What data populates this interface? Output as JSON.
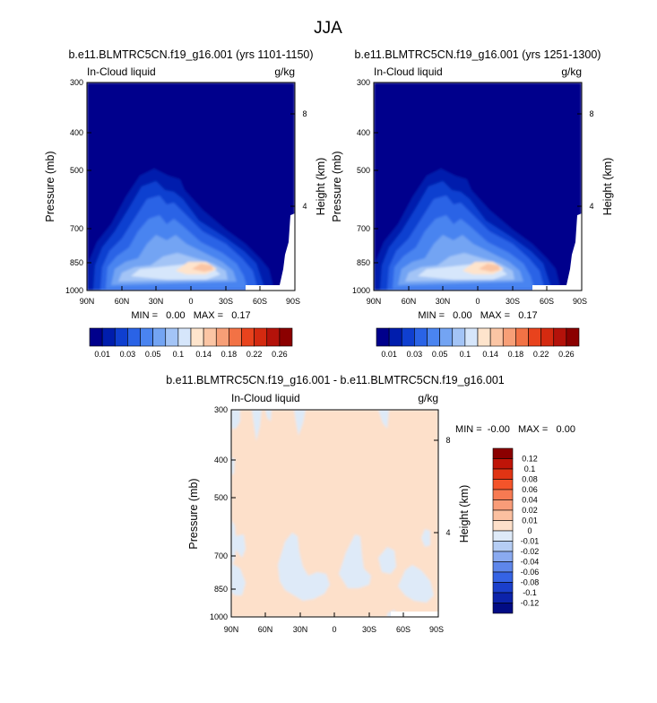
{
  "figure": {
    "title": "JJA"
  },
  "chart_data": [
    {
      "type": "heatmap",
      "title": "b.e11.BLMTRC5CN.f19_g16.001 (yrs 1101-1150)",
      "left_string": "In-Cloud liquid",
      "right_string": "g/kg",
      "xlabel": "",
      "ylabel": "Pressure (mb)",
      "ylabel_right": "Height (km)",
      "x_ticks": [
        "90N",
        "60N",
        "30N",
        "0",
        "30S",
        "60S",
        "90S"
      ],
      "y_ticks": [
        "300",
        "400",
        "500",
        "700",
        "850",
        "1000"
      ],
      "y_right_ticks": [
        "8",
        "4"
      ],
      "stats": "MIN =   0.00   MAX =   0.17",
      "min": 0.0,
      "max": 0.17,
      "levels_visible": [
        "0.01",
        "0.03",
        "0.05",
        "0.1",
        "0.14",
        "0.18",
        "0.22",
        "0.26"
      ],
      "colors": [
        "#00008c",
        "#001dad",
        "#0f3fd0",
        "#2a63e6",
        "#4a84f0",
        "#73a4f3",
        "#a3c4f6",
        "#d6e6fb",
        "#fee4cc",
        "#fbc5a4",
        "#f79f77",
        "#f27245",
        "#e8431d",
        "#d42a10",
        "#b4120a",
        "#8b0000"
      ],
      "colorbar_orientation": "horizontal",
      "colorbar_placement": "below"
    },
    {
      "type": "heatmap",
      "title": "b.e11.BLMTRC5CN.f19_g16.001 (yrs 1251-1300)",
      "left_string": "In-Cloud liquid",
      "right_string": "g/kg",
      "xlabel": "",
      "ylabel": "Pressure (mb)",
      "ylabel_right": "Height (km)",
      "x_ticks": [
        "90N",
        "60N",
        "30N",
        "0",
        "30S",
        "60S",
        "90S"
      ],
      "y_ticks": [
        "300",
        "400",
        "500",
        "700",
        "850",
        "1000"
      ],
      "y_right_ticks": [
        "8",
        "4"
      ],
      "stats": "MIN =   0.00   MAX =   0.17",
      "min": 0.0,
      "max": 0.17,
      "levels_visible": [
        "0.01",
        "0.03",
        "0.05",
        "0.1",
        "0.14",
        "0.18",
        "0.22",
        "0.26"
      ],
      "colors": [
        "#00008c",
        "#001dad",
        "#0f3fd0",
        "#2a63e6",
        "#4a84f0",
        "#73a4f3",
        "#a3c4f6",
        "#d6e6fb",
        "#fee4cc",
        "#fbc5a4",
        "#f79f77",
        "#f27245",
        "#e8431d",
        "#d42a10",
        "#b4120a",
        "#8b0000"
      ],
      "colorbar_orientation": "horizontal",
      "colorbar_placement": "below"
    },
    {
      "type": "heatmap",
      "title": "b.e11.BLMTRC5CN.f19_g16.001 - b.e11.BLMTRC5CN.f19_g16.001",
      "left_string": "In-Cloud liquid",
      "right_string": "g/kg",
      "xlabel": "",
      "ylabel": "Pressure (mb)",
      "ylabel_right": "Height (km)",
      "x_ticks": [
        "90N",
        "60N",
        "30N",
        "0",
        "30S",
        "60S",
        "90S"
      ],
      "y_ticks": [
        "300",
        "400",
        "500",
        "700",
        "850",
        "1000"
      ],
      "y_right_ticks": [
        "8",
        "4"
      ],
      "stats": "MIN =  -0.00   MAX =   0.00",
      "min": -0.0,
      "max": 0.0,
      "levels_visible": [
        "0.12",
        "0.1",
        "0.08",
        "0.06",
        "0.04",
        "0.02",
        "0.01",
        "0",
        "-0.01",
        "-0.02",
        "-0.04",
        "-0.06",
        "-0.08",
        "-0.1",
        "-0.12"
      ],
      "colors": [
        "#8b0000",
        "#bf1508",
        "#e03414",
        "#f4542a",
        "#f77a52",
        "#f99c78",
        "#fbc0a0",
        "#fde0ca",
        "#deeaf8",
        "#b5cdf4",
        "#8aaaf0",
        "#5e86ea",
        "#3563e4",
        "#1b3fcb",
        "#0c23aa",
        "#020c84"
      ],
      "colorbar_orientation": "vertical",
      "colorbar_placement": "right"
    }
  ]
}
